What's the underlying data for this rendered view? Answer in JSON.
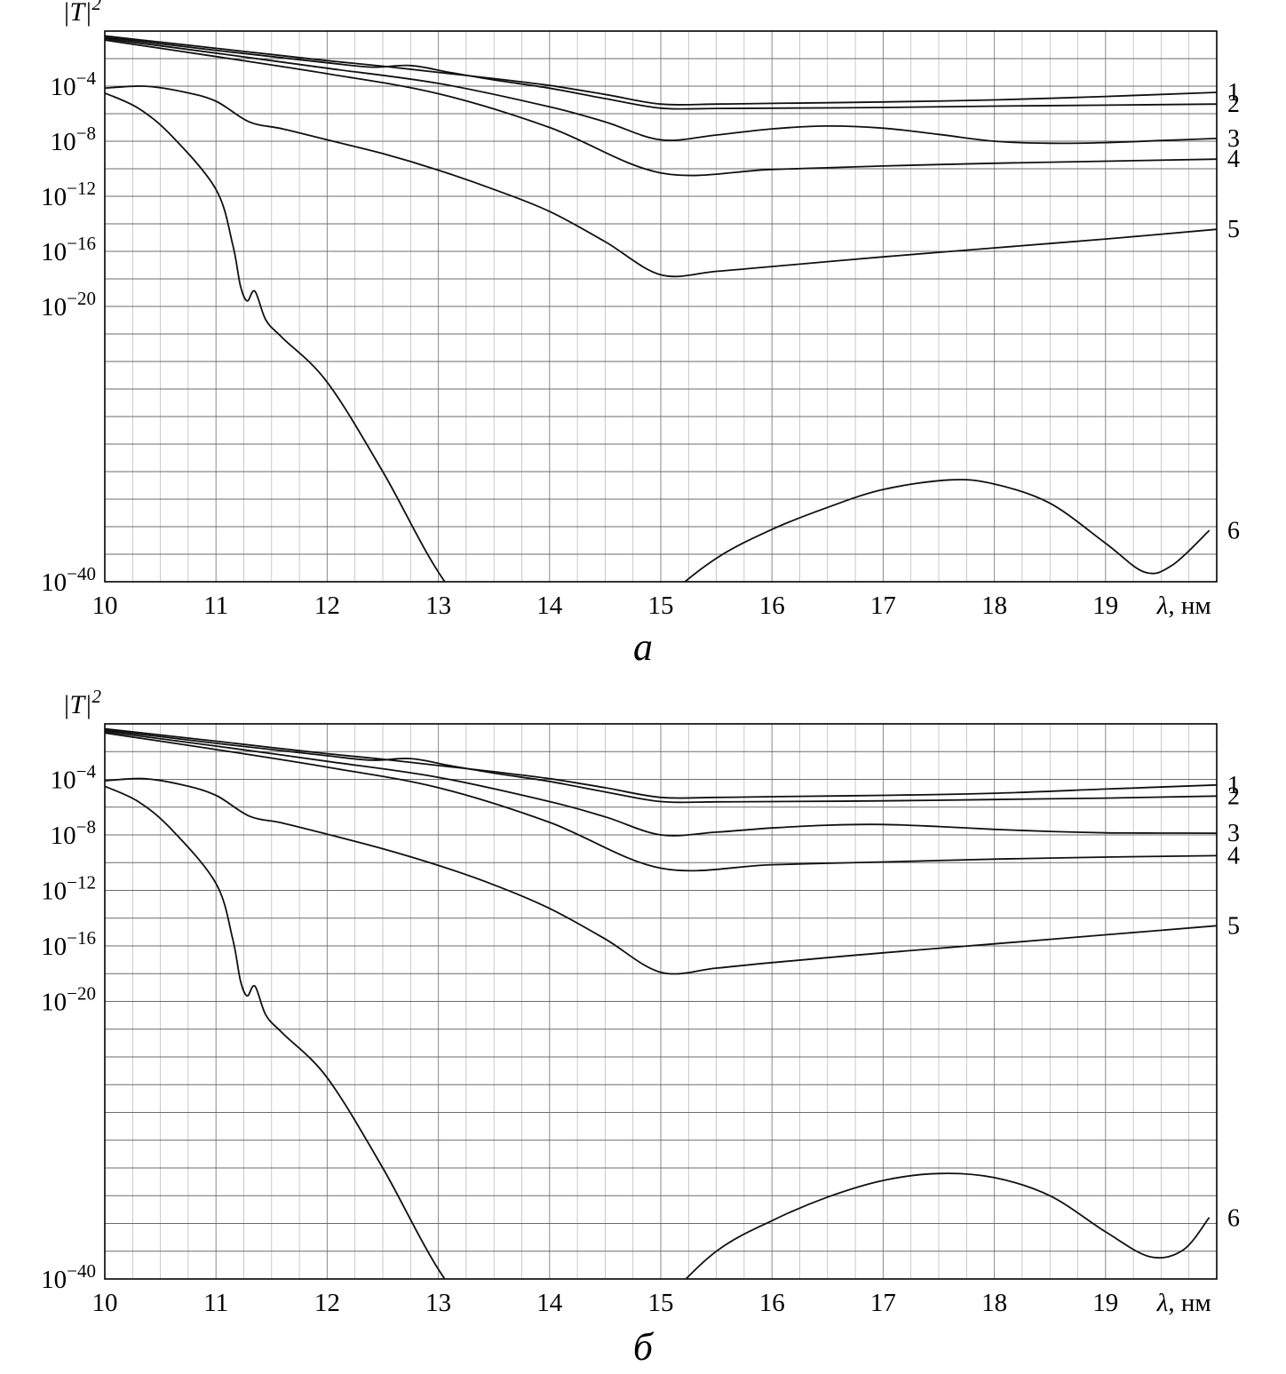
{
  "chart_data": [
    {
      "type": "line",
      "panel_label": "а",
      "title": "",
      "ylabel_base": "|T|",
      "ylabel_exp": "2",
      "xlabel_lambda": "λ",
      "xlabel_unit": ", нм",
      "xlim": [
        10,
        20
      ],
      "ylim_log10": [
        -40,
        0
      ],
      "x_ticks": [
        10,
        11,
        12,
        13,
        14,
        15,
        16,
        17,
        18,
        19
      ],
      "y_tick_exponents": [
        -4,
        -8,
        -12,
        -16,
        -20,
        -40
      ],
      "x_grid_minor_step": 0.25,
      "y_grid_step_decades": 2,
      "grid": true,
      "legend_position": "right-edge",
      "series": [
        {
          "name": "1",
          "x": [
            10,
            10.5,
            11,
            11.5,
            12,
            12.5,
            13,
            13.5,
            14,
            14.5,
            15,
            15.5,
            16,
            17,
            18,
            19,
            20
          ],
          "log10y": [
            -0.35,
            -0.8,
            -1.25,
            -1.7,
            -2.15,
            -2.55,
            -3.0,
            -3.45,
            -3.95,
            -4.6,
            -5.3,
            -5.3,
            -5.25,
            -5.15,
            -5.0,
            -4.75,
            -4.45
          ]
        },
        {
          "name": "2",
          "x": [
            10,
            10.5,
            11,
            11.5,
            12,
            12.4,
            12.75,
            13.1,
            13.5,
            14,
            14.5,
            15,
            15.5,
            16,
            17,
            18,
            19,
            20
          ],
          "log10y": [
            -0.45,
            -0.92,
            -1.4,
            -1.85,
            -2.3,
            -2.62,
            -2.5,
            -3.0,
            -3.55,
            -4.15,
            -4.9,
            -5.6,
            -5.62,
            -5.6,
            -5.55,
            -5.45,
            -5.38,
            -5.3
          ]
        },
        {
          "name": "3",
          "x": [
            10,
            11,
            12,
            13,
            14,
            14.5,
            15,
            15.5,
            16,
            16.5,
            17,
            17.5,
            18,
            18.5,
            19,
            19.5,
            20
          ],
          "log10y": [
            -0.55,
            -1.6,
            -2.7,
            -3.8,
            -5.5,
            -6.6,
            -7.9,
            -7.55,
            -7.1,
            -6.9,
            -7.05,
            -7.5,
            -8.0,
            -8.15,
            -8.1,
            -7.95,
            -7.8
          ]
        },
        {
          "name": "4",
          "x": [
            10,
            11,
            12,
            13,
            14,
            15,
            16,
            17,
            18,
            19,
            20
          ],
          "log10y": [
            -0.65,
            -1.85,
            -3.1,
            -4.55,
            -7.0,
            -10.3,
            -10.05,
            -9.8,
            -9.6,
            -9.45,
            -9.3
          ]
        },
        {
          "name": "5",
          "x": [
            10,
            10.35,
            10.7,
            11,
            11.3,
            11.6,
            12,
            12.5,
            13,
            13.5,
            14,
            14.5,
            15,
            15.5,
            16,
            17,
            18,
            19,
            20
          ],
          "log10y": [
            -4.15,
            -4.0,
            -4.4,
            -5.1,
            -6.6,
            -7.1,
            -7.9,
            -8.9,
            -10.1,
            -11.5,
            -13.1,
            -15.3,
            -17.7,
            -17.45,
            -17.1,
            -16.4,
            -15.75,
            -15.1,
            -14.4
          ]
        },
        {
          "name": "6",
          "x": [
            10,
            10.3,
            10.6,
            11,
            11.15,
            11.22,
            11.28,
            11.35,
            11.45,
            11.6,
            12,
            12.5,
            13,
            13.5,
            14,
            14.5,
            15,
            15.5,
            16,
            16.5,
            17,
            17.6,
            18,
            18.5,
            19,
            19.35,
            19.6,
            19.93
          ],
          "log10y": [
            -4.5,
            -5.6,
            -7.6,
            -11.5,
            -15.5,
            -18.5,
            -19.6,
            -18.9,
            -21.0,
            -22.3,
            -25.5,
            -32.0,
            -39.3,
            -44.5,
            -47.5,
            -45.5,
            -41.5,
            -38.3,
            -36.2,
            -34.6,
            -33.3,
            -32.6,
            -32.9,
            -34.3,
            -37.2,
            -39.3,
            -38.8,
            -36.3
          ]
        }
      ]
    },
    {
      "type": "line",
      "panel_label": "б",
      "title": "",
      "ylabel_base": "|T|",
      "ylabel_exp": "2",
      "xlabel_lambda": "λ",
      "xlabel_unit": ", нм",
      "xlim": [
        10,
        20
      ],
      "ylim_log10": [
        -40,
        0
      ],
      "x_ticks": [
        10,
        11,
        12,
        13,
        14,
        15,
        16,
        17,
        18,
        19
      ],
      "y_tick_exponents": [
        -4,
        -8,
        -12,
        -16,
        -20,
        -40
      ],
      "x_grid_minor_step": 0.25,
      "y_grid_step_decades": 2,
      "grid": true,
      "legend_position": "right-edge",
      "series": [
        {
          "name": "1",
          "x": [
            10,
            10.5,
            11,
            11.5,
            12,
            12.5,
            13,
            13.5,
            14,
            14.5,
            15,
            15.5,
            16,
            17,
            18,
            19,
            20
          ],
          "log10y": [
            -0.35,
            -0.8,
            -1.25,
            -1.7,
            -2.15,
            -2.55,
            -3.0,
            -3.45,
            -3.95,
            -4.6,
            -5.3,
            -5.3,
            -5.25,
            -5.15,
            -5.0,
            -4.7,
            -4.4
          ]
        },
        {
          "name": "2",
          "x": [
            10,
            10.5,
            11,
            11.5,
            12,
            12.4,
            12.75,
            13.1,
            13.5,
            14,
            14.5,
            15,
            15.5,
            16,
            17,
            18,
            19,
            20
          ],
          "log10y": [
            -0.45,
            -0.92,
            -1.4,
            -1.85,
            -2.3,
            -2.62,
            -2.5,
            -3.0,
            -3.55,
            -4.15,
            -4.9,
            -5.6,
            -5.62,
            -5.6,
            -5.55,
            -5.45,
            -5.35,
            -5.2
          ]
        },
        {
          "name": "3",
          "x": [
            10,
            11,
            12,
            13,
            14,
            14.5,
            15,
            15.5,
            16,
            16.5,
            17,
            17.5,
            18,
            18.5,
            19,
            19.5,
            20
          ],
          "log10y": [
            -0.55,
            -1.6,
            -2.7,
            -3.85,
            -5.6,
            -6.7,
            -8.0,
            -7.8,
            -7.5,
            -7.3,
            -7.25,
            -7.4,
            -7.6,
            -7.75,
            -7.85,
            -7.87,
            -7.88
          ]
        },
        {
          "name": "4",
          "x": [
            10,
            11,
            12,
            13,
            14,
            15,
            16,
            17,
            18,
            19,
            20
          ],
          "log10y": [
            -0.65,
            -1.85,
            -3.12,
            -4.6,
            -7.1,
            -10.4,
            -10.15,
            -9.95,
            -9.75,
            -9.6,
            -9.5
          ]
        },
        {
          "name": "5",
          "x": [
            10,
            10.35,
            10.7,
            11,
            11.3,
            11.6,
            12,
            12.5,
            13,
            13.5,
            14,
            14.5,
            15,
            15.5,
            16,
            17,
            18,
            19,
            20
          ],
          "log10y": [
            -4.1,
            -3.95,
            -4.4,
            -5.15,
            -6.65,
            -7.15,
            -7.95,
            -9.0,
            -10.2,
            -11.6,
            -13.3,
            -15.5,
            -17.9,
            -17.6,
            -17.2,
            -16.5,
            -15.85,
            -15.2,
            -14.55
          ]
        },
        {
          "name": "6",
          "x": [
            10,
            10.3,
            10.6,
            11,
            11.15,
            11.22,
            11.28,
            11.35,
            11.45,
            11.6,
            12,
            12.5,
            13,
            13.5,
            14,
            14.5,
            15,
            15.5,
            16,
            16.5,
            17,
            17.5,
            18,
            18.5,
            19,
            19.4,
            19.7,
            19.93
          ],
          "log10y": [
            -4.5,
            -5.6,
            -7.6,
            -11.5,
            -15.5,
            -18.5,
            -19.6,
            -18.9,
            -21.0,
            -22.3,
            -25.5,
            -32.0,
            -39.3,
            -44.5,
            -47.5,
            -45.5,
            -41.8,
            -38.0,
            -35.8,
            -34.1,
            -32.9,
            -32.4,
            -32.7,
            -34.0,
            -36.6,
            -38.4,
            -37.9,
            -35.6
          ]
        }
      ]
    }
  ]
}
